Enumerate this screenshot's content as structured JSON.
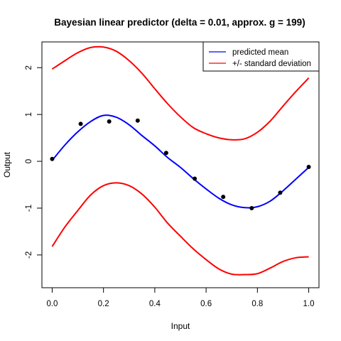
{
  "chart_data": {
    "type": "line",
    "title": "Bayesian linear predictor (delta = 0.01, approx. g = 199)",
    "xlabel": "Input",
    "ylabel": "Output",
    "xlim": [
      -0.04,
      1.04
    ],
    "ylim": [
      -2.7,
      2.55
    ],
    "x_ticks": [
      0.0,
      0.2,
      0.4,
      0.6,
      0.8,
      1.0
    ],
    "x_tick_labels": [
      "0.0",
      "0.2",
      "0.4",
      "0.6",
      "0.8",
      "1.0"
    ],
    "y_ticks": [
      -2,
      -1,
      0,
      1,
      2
    ],
    "y_tick_labels": [
      "-2",
      "-1",
      "0",
      "1",
      "2"
    ],
    "grid": false,
    "legend": {
      "position": "top-right",
      "entries": [
        {
          "label": "predicted mean",
          "color": "#0000ff"
        },
        {
          "label": "+/- standard deviation",
          "color": "#ff0000"
        }
      ]
    },
    "x": [
      0.0,
      0.05,
      0.1,
      0.15,
      0.2,
      0.25,
      0.3,
      0.35,
      0.4,
      0.45,
      0.5,
      0.55,
      0.6,
      0.65,
      0.7,
      0.75,
      0.8,
      0.85,
      0.9,
      0.95,
      1.0
    ],
    "series": [
      {
        "name": "predicted mean",
        "color": "#0000ff",
        "values": [
          0.02,
          0.35,
          0.63,
          0.85,
          0.98,
          0.94,
          0.78,
          0.55,
          0.33,
          0.08,
          -0.13,
          -0.37,
          -0.59,
          -0.79,
          -0.93,
          -0.99,
          -0.97,
          -0.85,
          -0.63,
          -0.38,
          -0.13
        ]
      },
      {
        "name": "+/- standard deviation",
        "color": "#ff0000",
        "values": [
          1.97,
          2.15,
          2.32,
          2.43,
          2.44,
          2.35,
          2.15,
          1.88,
          1.55,
          1.23,
          0.95,
          0.72,
          0.59,
          0.5,
          0.46,
          0.48,
          0.62,
          0.86,
          1.18,
          1.49,
          1.78
        ]
      },
      {
        "name": "+/- standard deviation",
        "color": "#ff0000",
        "values": [
          -1.82,
          -1.4,
          -1.05,
          -0.72,
          -0.52,
          -0.46,
          -0.52,
          -0.7,
          -0.98,
          -1.32,
          -1.6,
          -1.87,
          -2.1,
          -2.3,
          -2.41,
          -2.42,
          -2.4,
          -2.28,
          -2.14,
          -2.06,
          -2.04
        ]
      }
    ],
    "points": {
      "color": "#000000",
      "x": [
        0.0,
        0.1111,
        0.2222,
        0.3333,
        0.4444,
        0.5556,
        0.6667,
        0.7778,
        0.8889,
        1.0
      ],
      "y": [
        0.05,
        0.8,
        0.85,
        0.87,
        0.18,
        -0.37,
        -0.76,
        -1.0,
        -0.67,
        -0.12
      ]
    }
  }
}
